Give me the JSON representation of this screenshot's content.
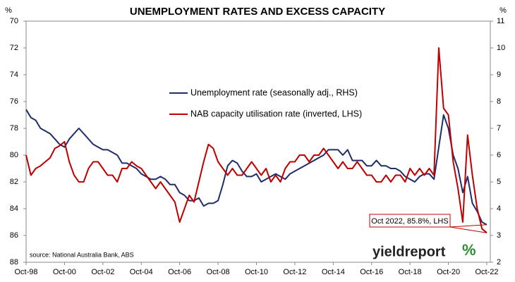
{
  "chart_data": {
    "type": "line",
    "title": "UNEMPLOYMENT RATES AND EXCESS CAPACITY",
    "ylabel": "%",
    "y2label": "%",
    "categories": [
      "Oct-98",
      null,
      null,
      null,
      null,
      null,
      null,
      null,
      "Oct-00",
      null,
      null,
      null,
      null,
      null,
      null,
      null,
      "Oct-02",
      null,
      null,
      null,
      null,
      null,
      null,
      null,
      "Oct-04",
      null,
      null,
      null,
      null,
      null,
      null,
      null,
      "Oct-06",
      null,
      null,
      null,
      null,
      null,
      null,
      null,
      "Oct-08",
      null,
      null,
      null,
      null,
      null,
      null,
      null,
      "Oct-10",
      null,
      null,
      null,
      null,
      null,
      null,
      null,
      "Oct-12",
      null,
      null,
      null,
      null,
      null,
      null,
      null,
      "Oct-14",
      null,
      null,
      null,
      null,
      null,
      null,
      null,
      "Oct-16",
      null,
      null,
      null,
      null,
      null,
      null,
      null,
      "Oct-18",
      null,
      null,
      null,
      null,
      null,
      null,
      null,
      "Oct-20",
      null,
      null,
      null,
      null,
      null,
      null,
      null,
      "Oct-22"
    ],
    "series": [
      {
        "name": "Unemployment rate (seasonally adj., RHS)",
        "color": "#1f2d6b",
        "axis": "y2",
        "values": [
          7.7,
          7.4,
          7.3,
          7.0,
          6.9,
          6.8,
          6.6,
          6.4,
          6.3,
          6.6,
          6.8,
          7.0,
          6.8,
          6.6,
          6.4,
          6.3,
          6.2,
          6.2,
          6.1,
          6.0,
          5.7,
          5.7,
          5.6,
          5.5,
          5.3,
          5.2,
          5.1,
          5.1,
          5.2,
          5.1,
          4.9,
          4.9,
          4.6,
          4.5,
          4.3,
          4.3,
          4.4,
          4.1,
          4.2,
          4.2,
          4.3,
          4.9,
          5.6,
          5.8,
          5.7,
          5.4,
          5.2,
          5.2,
          5.3,
          5.0,
          5.1,
          5.2,
          5.3,
          5.2,
          5.1,
          5.3,
          5.4,
          5.5,
          5.6,
          5.7,
          5.8,
          5.9,
          6.0,
          6.2,
          6.2,
          6.2,
          6.0,
          6.2,
          5.8,
          5.8,
          5.8,
          5.6,
          5.6,
          5.8,
          5.6,
          5.6,
          5.5,
          5.5,
          5.4,
          5.2,
          5.1,
          5.0,
          5.2,
          5.3,
          5.3,
          5.1,
          6.3,
          7.5,
          7.0,
          6.0,
          5.5,
          4.6,
          5.2,
          4.2,
          3.9,
          3.5,
          3.4
        ]
      },
      {
        "name": "NAB capacity utilisation rate (inverted, LHS)",
        "color": "#c00000",
        "axis": "y",
        "values": [
          80.0,
          81.5,
          81.0,
          80.8,
          80.5,
          80.2,
          79.5,
          79.3,
          79.0,
          80.5,
          81.5,
          82.0,
          82.0,
          81.0,
          80.5,
          80.5,
          81.0,
          81.5,
          81.5,
          82.0,
          81.0,
          81.0,
          80.5,
          80.8,
          81.0,
          81.5,
          82.0,
          82.5,
          82.0,
          82.5,
          83.0,
          83.5,
          85.0,
          84.0,
          83.0,
          83.5,
          82.0,
          80.5,
          79.2,
          79.5,
          80.5,
          81.0,
          81.5,
          81.0,
          81.5,
          81.5,
          81.0,
          80.5,
          81.0,
          81.5,
          81.0,
          82.0,
          81.5,
          82.0,
          81.0,
          80.5,
          80.5,
          80.0,
          80.0,
          80.5,
          80.0,
          80.0,
          79.5,
          80.0,
          80.5,
          81.0,
          80.5,
          81.0,
          81.0,
          80.5,
          81.0,
          81.5,
          81.5,
          82.0,
          82.0,
          81.5,
          82.0,
          81.5,
          81.5,
          82.0,
          81.0,
          81.5,
          81.0,
          81.5,
          81.0,
          81.5,
          72.0,
          76.5,
          77.0,
          80.5,
          82.5,
          85.0,
          78.5,
          81.5,
          84.0,
          85.5,
          85.8
        ]
      }
    ],
    "ylim": [
      70,
      88
    ],
    "y_inverted": true,
    "yticks": [
      70,
      72,
      74,
      76,
      78,
      80,
      82,
      84,
      86,
      88
    ],
    "y2lim": [
      2,
      11
    ],
    "y2ticks": [
      2,
      3,
      4,
      5,
      6,
      7,
      8,
      9,
      10,
      11
    ],
    "grid": false,
    "annotation": "Oct 2022, 85.8%, LHS",
    "source": "source: National Australia Bank, ABS",
    "logo": "yieldreport",
    "logo_symbol": "%"
  }
}
